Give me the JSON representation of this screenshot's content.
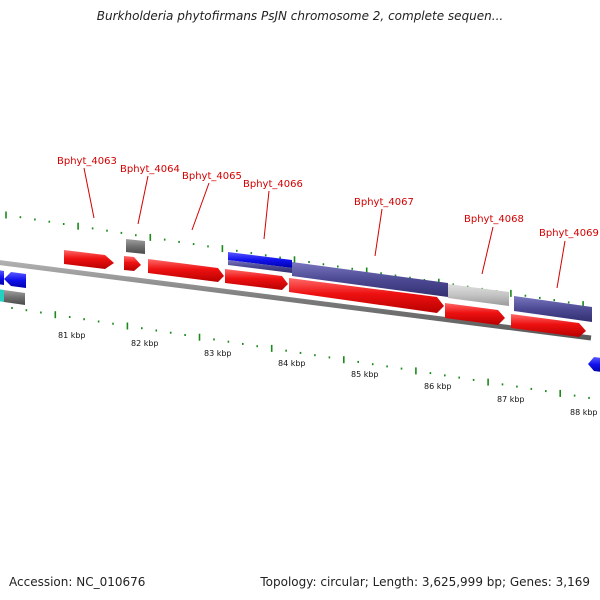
{
  "header": {
    "title": "Burkholderia phytofirmans PsJN chromosome 2, complete sequen..."
  },
  "footer": {
    "accession": "Accession: NC_010676",
    "topology": "Topology: circular; Length: 3,625,999 bp; Genes: 3,169"
  },
  "colors": {
    "cds_red": "#ee1111",
    "blue": "#1111ee",
    "purple": "#4d4a94",
    "grey": "#c4c4c4",
    "dark_grey": "#707070",
    "teal": "#25d0c0",
    "backbone": "#8a8a8a",
    "tick_green": "#1a8a1a",
    "label_red": "#d40000"
  },
  "gene_labels": [
    "Bphyt_4063",
    "Bphyt_4064",
    "Bphyt_4065",
    "Bphyt_4066",
    "Bphyt_4067",
    "Bphyt_4068",
    "Bphyt_4069"
  ],
  "scale_labels": [
    "81 kbp",
    "82 kbp",
    "83 kbp",
    "84 kbp",
    "85 kbp",
    "86 kbp",
    "87 kbp",
    "88 kbp"
  ]
}
